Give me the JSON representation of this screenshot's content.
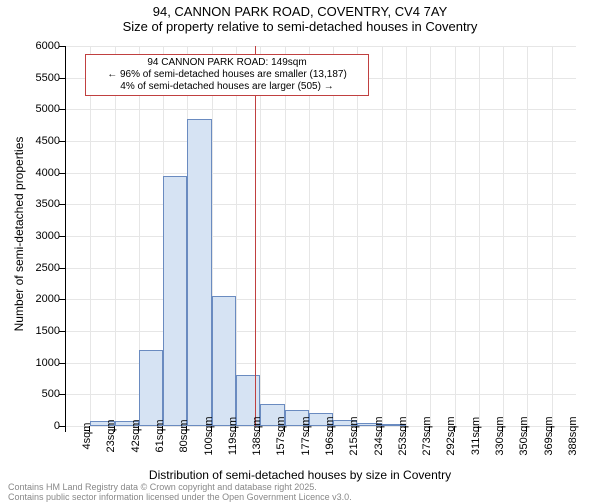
{
  "chart": {
    "type": "histogram",
    "title_main": "94, CANNON PARK ROAD, COVENTRY, CV4 7AY",
    "title_sub": "Size of property relative to semi-detached houses in Coventry",
    "y_axis_label": "Number of semi-detached properties",
    "x_axis_label": "Distribution of semi-detached houses by size in Coventry",
    "background_color": "#ffffff",
    "bar_fill": "#d6e3f3",
    "bar_border": "#6a8bc0",
    "grid_color": "#e6e6e6",
    "marker_color": "#c04040",
    "ylim": [
      0,
      6000
    ],
    "y_ticks": [
      0,
      500,
      1000,
      1500,
      2000,
      2500,
      3000,
      3500,
      4000,
      4500,
      5000,
      5500,
      6000
    ],
    "x_categories": [
      "4sqm",
      "23sqm",
      "42sqm",
      "61sqm",
      "80sqm",
      "100sqm",
      "119sqm",
      "138sqm",
      "157sqm",
      "177sqm",
      "196sqm",
      "215sqm",
      "234sqm",
      "253sqm",
      "273sqm",
      "292sqm",
      "311sqm",
      "330sqm",
      "350sqm",
      "369sqm",
      "388sqm"
    ],
    "bar_values": [
      0,
      80,
      80,
      1200,
      3950,
      4850,
      2050,
      800,
      350,
      250,
      200,
      100,
      40,
      30,
      0,
      0,
      0,
      0,
      0,
      0,
      0
    ],
    "marker_x_index": 7.8,
    "annotation": {
      "line1": "94 CANNON PARK ROAD: 149sqm",
      "line2": "← 96% of semi-detached houses are smaller (13,187)",
      "line3": "4% of semi-detached houses are larger (505) →"
    },
    "footer1": "Contains HM Land Registry data © Crown copyright and database right 2025.",
    "footer2": "Contains public sector information licensed under the Open Government Licence v3.0."
  }
}
